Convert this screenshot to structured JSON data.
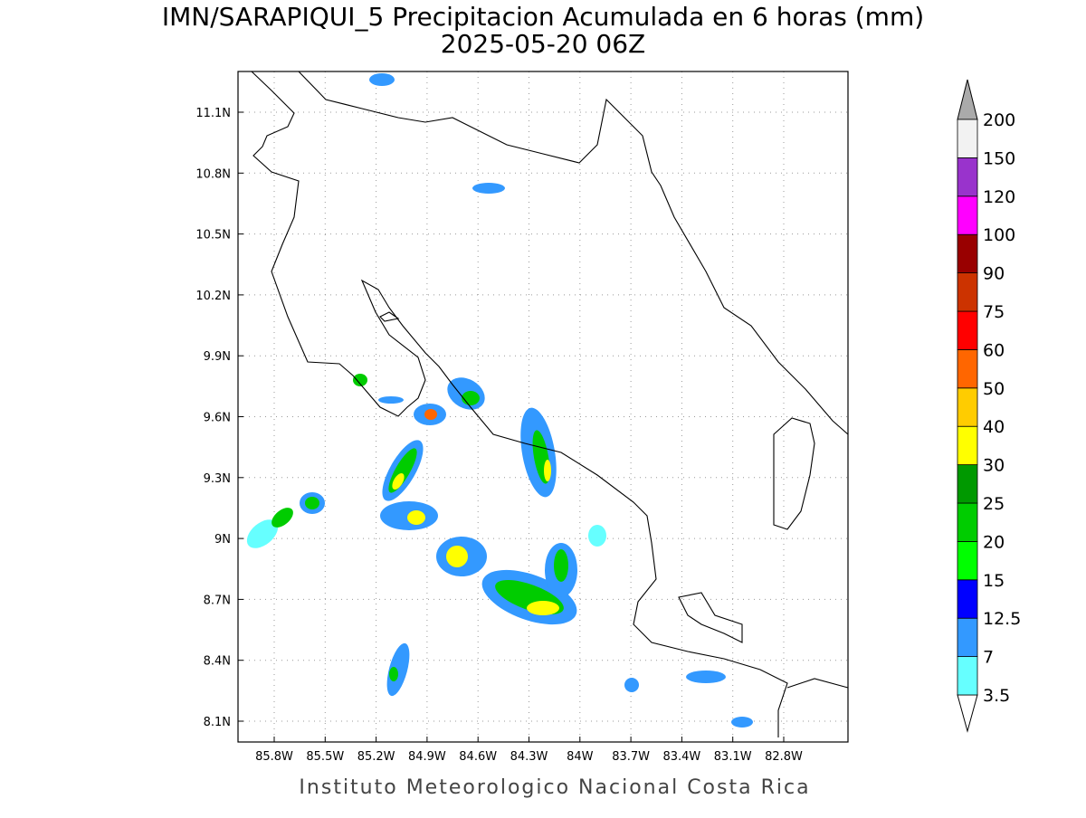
{
  "title": "IMN/SARAPIQUI_5 Precipitacion Acumulada en 6 horas (mm)",
  "subtitle": "2025-05-20 06Z",
  "map": {
    "x_labels": [
      "85.8W",
      "85.5W",
      "85.2W",
      "84.9W",
      "84.6W",
      "84.3W",
      "84W",
      "83.7W",
      "83.4W",
      "83.1W",
      "82.8W"
    ],
    "y_labels": [
      "11.1N",
      "10.8N",
      "10.5N",
      "10.2N",
      "9.9N",
      "9.6N",
      "9.3N",
      "9N",
      "8.7N",
      "8.4N",
      "8.1N"
    ],
    "grid": true
  },
  "colorbar": {
    "levels": [
      "3.5",
      "7",
      "12.5",
      "15",
      "20",
      "25",
      "30",
      "40",
      "50",
      "60",
      "75",
      "90",
      "100",
      "120",
      "150",
      "200"
    ],
    "colors": [
      "#66ffff",
      "#3399ff",
      "#0000ff",
      "#00ff00",
      "#00cc00",
      "#009900",
      "#ffff00",
      "#ffcc00",
      "#ff6600",
      "#ff0000",
      "#cc3300",
      "#990000",
      "#ff00ff",
      "#9933cc",
      "#f2f2f2"
    ],
    "under_color": "#ffffff",
    "over_color": "#aaaaaa"
  },
  "footer": "Instituto Meteorologico Nacional Costa Rica"
}
